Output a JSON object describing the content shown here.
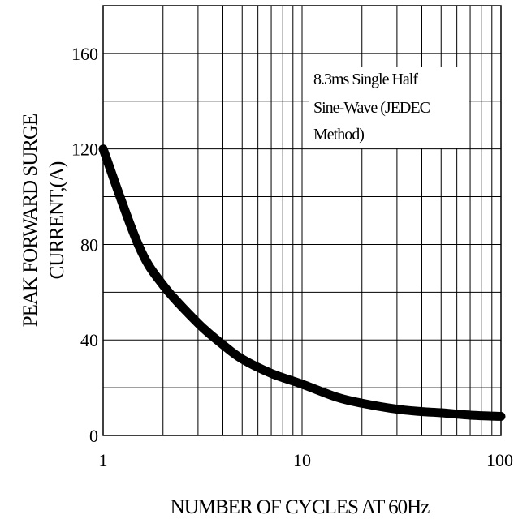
{
  "chart_data": {
    "type": "line",
    "title": "",
    "xlabel": "NUMBER OF CYCLES AT 60Hz",
    "ylabel_lines": [
      "PEAK FORWARD SURGE",
      "CURRENT,(A)"
    ],
    "x_scale": "log",
    "xlim": [
      1,
      100
    ],
    "ylim": [
      0,
      180
    ],
    "grid": true,
    "x_ticks": [
      1,
      10,
      100
    ],
    "x_tick_labels": [
      "1",
      "10",
      "100"
    ],
    "y_ticks": [
      0,
      40,
      80,
      120,
      160
    ],
    "y_tick_labels": [
      "0",
      "40",
      "80",
      "120",
      "160"
    ],
    "annotation_lines": [
      "8.3ms Single Half",
      "Sine-Wave (JEDEC",
      "Method)"
    ],
    "series": [
      {
        "x": [
          1,
          1.5,
          2,
          3,
          4,
          5,
          7,
          10,
          15,
          20,
          30,
          40,
          50,
          70,
          100
        ],
        "values": [
          120,
          80,
          63,
          47,
          38,
          32,
          26,
          21.5,
          16,
          13.5,
          11,
          10,
          9.5,
          8.5,
          8
        ]
      }
    ]
  }
}
